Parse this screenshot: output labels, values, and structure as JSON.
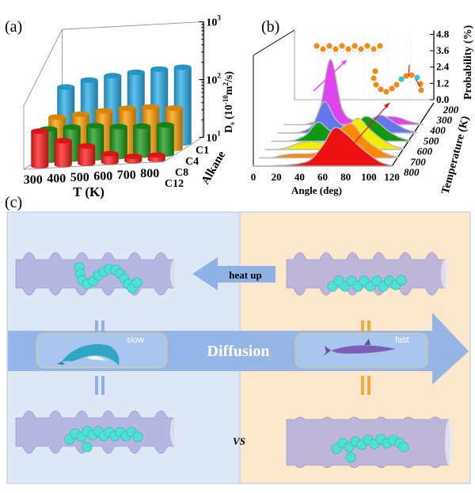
{
  "chart_data": [
    {
      "panel_label": "(a)",
      "type": "bar",
      "subtype": "3d-cylinder",
      "x_categories": [
        "300",
        "400",
        "500",
        "600",
        "700",
        "800"
      ],
      "xlabel": "T (K)",
      "depth_categories": [
        "C1",
        "C4",
        "C8",
        "C12"
      ],
      "depth_label": "Alkane",
      "ylabel": "D<sub>s</sub> (10<sup>-10</sup>m<sup>2</sup>/s)",
      "ylabel_parts": {
        "main": "D",
        "sub": "s",
        "rest1": " (10",
        "sup1": "-10",
        "rest2": "m",
        "sup2": "2",
        "rest3": "/s)"
      },
      "yscale": "log",
      "ylim": [
        10,
        1000
      ],
      "yticks": [
        {
          "base": "10",
          "exp": "1"
        },
        {
          "base": "10",
          "exp": "2"
        },
        {
          "base": "10",
          "exp": "3"
        }
      ],
      "series": [
        {
          "name": "C1",
          "color": "#29aee8",
          "values": [
            120,
            150,
            170,
            185,
            200,
            205
          ]
        },
        {
          "name": "C4",
          "color": "#ff9c00",
          "values": [
            45,
            48,
            52,
            55,
            55,
            50
          ]
        },
        {
          "name": "C8",
          "color": "#1a9a1a",
          "values": [
            35,
            36,
            36,
            33,
            32,
            32
          ]
        },
        {
          "name": "C12",
          "color": "#ff1a1a",
          "values": [
            40,
            26,
            20,
            14,
            12,
            12
          ]
        }
      ]
    },
    {
      "panel_label": "(b)",
      "type": "area",
      "subtype": "3d-ridgeline",
      "xlabel": "Angle (deg)",
      "xlim": [
        0,
        120
      ],
      "xticks": [
        "0",
        "20",
        "40",
        "60",
        "80",
        "100",
        "120"
      ],
      "zlabel": "Probability (%)",
      "zlim": [
        0,
        4.8
      ],
      "zticks": [
        "0.0",
        "1.2",
        "2.4",
        "3.6",
        "4.8"
      ],
      "depth_label": "Temperature (K)",
      "depth_ticks": [
        "200",
        "300",
        "400",
        "500",
        "600",
        "700",
        "800"
      ],
      "x": [
        0,
        10,
        20,
        30,
        40,
        50,
        60,
        70,
        80,
        90,
        100,
        110,
        120
      ],
      "series": [
        {
          "temperature": "300",
          "color": "#dd44ee",
          "values": [
            0,
            0,
            0.05,
            0.8,
            4.8,
            1.2,
            0.3,
            0.2,
            0.3,
            0.6,
            0.5,
            0.2,
            0.05
          ]
        },
        {
          "temperature": "400",
          "color": "#6677ee",
          "values": [
            0,
            0,
            0.1,
            0.6,
            2.3,
            1.0,
            0.4,
            0.5,
            1.0,
            1.3,
            0.8,
            0.3,
            0.05
          ]
        },
        {
          "temperature": "500",
          "color": "#119911",
          "values": [
            0,
            0,
            0.1,
            0.5,
            1.4,
            0.8,
            0.5,
            0.9,
            1.8,
            1.5,
            0.8,
            0.3,
            0.05
          ]
        },
        {
          "temperature": "600",
          "color": "#f2ee00",
          "values": [
            0,
            0,
            0.2,
            0.5,
            0.6,
            0.5,
            0.8,
            1.6,
            2.3,
            1.5,
            0.8,
            0.3,
            0.05
          ]
        },
        {
          "temperature": "700",
          "color": "#ff8800",
          "values": [
            0,
            0,
            0.2,
            0.3,
            0.3,
            0.4,
            1.0,
            2.1,
            2.5,
            1.5,
            0.8,
            0.3,
            0.05
          ]
        },
        {
          "temperature": "800",
          "color": "#ee1111",
          "values": [
            0,
            0,
            0.05,
            0.1,
            0.2,
            0.5,
            1.5,
            2.8,
            2.4,
            1.6,
            0.9,
            0.3,
            0.05
          ]
        }
      ]
    }
  ],
  "panel_c": {
    "label": "(c)",
    "heat_up": "heat up",
    "diffusion": "Diffusion",
    "slow": "slow",
    "fast": "fast",
    "vs": "VS",
    "colors": {
      "left_bg": "#dce8f6",
      "right_bg": "#fbe8cc",
      "arrow": "#8fb2e6",
      "molecule": "#4fe0d6",
      "tube": "#a9a6dc",
      "equal_left": "#8fb2e6",
      "equal_right": "#f6a940"
    }
  }
}
